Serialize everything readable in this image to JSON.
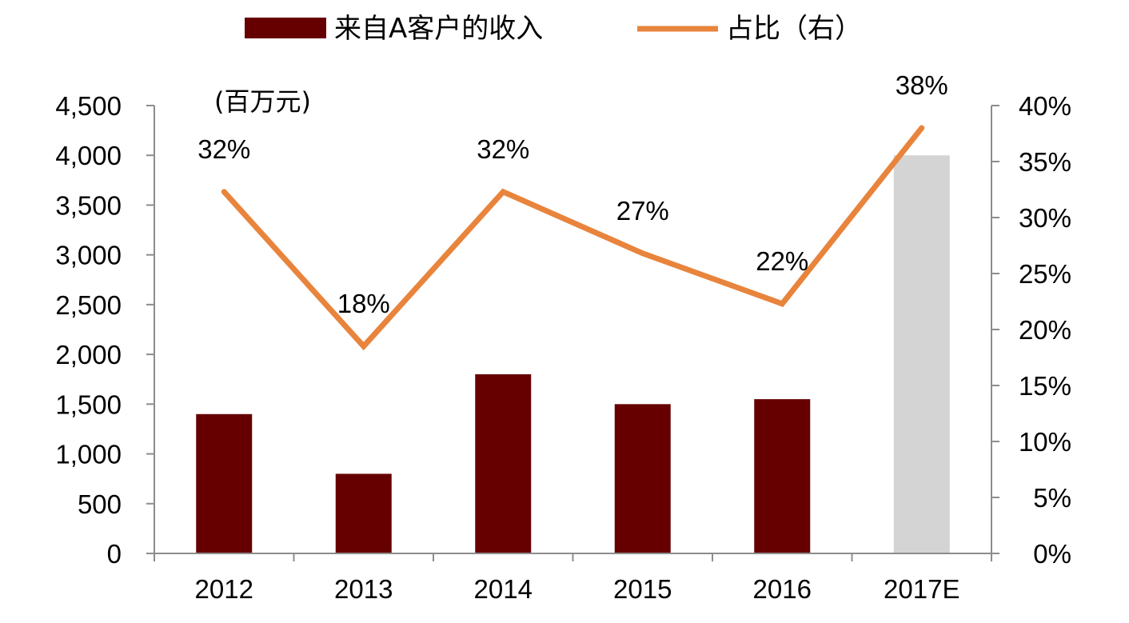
{
  "chart_data": {
    "type": "bar+line",
    "categories": [
      "2012",
      "2013",
      "2014",
      "2015",
      "2016",
      "2017E"
    ],
    "series": [
      {
        "name": "来自A客户的收入",
        "kind": "bar",
        "axis": "left",
        "values": [
          1400,
          800,
          1800,
          1500,
          1550,
          4000
        ],
        "colors": [
          "#660000",
          "#660000",
          "#660000",
          "#660000",
          "#660000",
          "#d4d4d4"
        ]
      },
      {
        "name": "占比（右）",
        "kind": "line",
        "axis": "right",
        "values": [
          32.3,
          18.5,
          32.3,
          26.8,
          22.3,
          38.0
        ],
        "labels": [
          "32%",
          "18%",
          "32%",
          "27%",
          "22%",
          "38%"
        ],
        "color": "#e8843c"
      }
    ],
    "left_axis": {
      "unit_label": "(百万元)",
      "ylim": [
        0,
        4500
      ],
      "ticks": [
        0,
        500,
        1000,
        1500,
        2000,
        2500,
        3000,
        3500,
        4000,
        4500
      ],
      "tick_labels": [
        "0",
        "500",
        "1,000",
        "1,500",
        "2,000",
        "2,500",
        "3,000",
        "3,500",
        "4,000",
        "4,500"
      ]
    },
    "right_axis": {
      "ylim": [
        0,
        40
      ],
      "ticks": [
        0,
        5,
        10,
        15,
        20,
        25,
        30,
        35,
        40
      ],
      "tick_labels": [
        "0%",
        "5%",
        "10%",
        "15%",
        "20%",
        "25%",
        "30%",
        "35%",
        "40%"
      ]
    },
    "legend": {
      "placement": "top-center",
      "items": [
        {
          "label": "来自A客户的收入",
          "color": "#660000",
          "shape": "rect"
        },
        {
          "label": "占比（右）",
          "color": "#e8843c",
          "shape": "line"
        }
      ]
    },
    "grid": false
  }
}
